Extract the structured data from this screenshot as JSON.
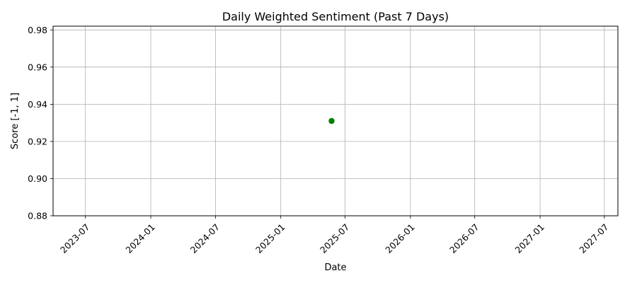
{
  "chart_data": {
    "type": "scatter",
    "title": "Daily Weighted Sentiment (Past 7 Days)",
    "xlabel": "Date",
    "ylabel": "Score [-1, 1]",
    "x_scale": "date",
    "xlim": [
      "2023-04-01",
      "2027-08-08"
    ],
    "ylim": [
      0.88,
      0.982
    ],
    "x_ticks": [
      "2023-07",
      "2024-01",
      "2024-07",
      "2025-01",
      "2025-07",
      "2026-01",
      "2026-07",
      "2027-01",
      "2027-07"
    ],
    "y_ticks": [
      "0.88",
      "0.90",
      "0.92",
      "0.94",
      "0.96",
      "0.98"
    ],
    "grid": true,
    "points": [
      {
        "x": "2025-05-24",
        "y": 0.931,
        "color": "#008000"
      }
    ]
  }
}
